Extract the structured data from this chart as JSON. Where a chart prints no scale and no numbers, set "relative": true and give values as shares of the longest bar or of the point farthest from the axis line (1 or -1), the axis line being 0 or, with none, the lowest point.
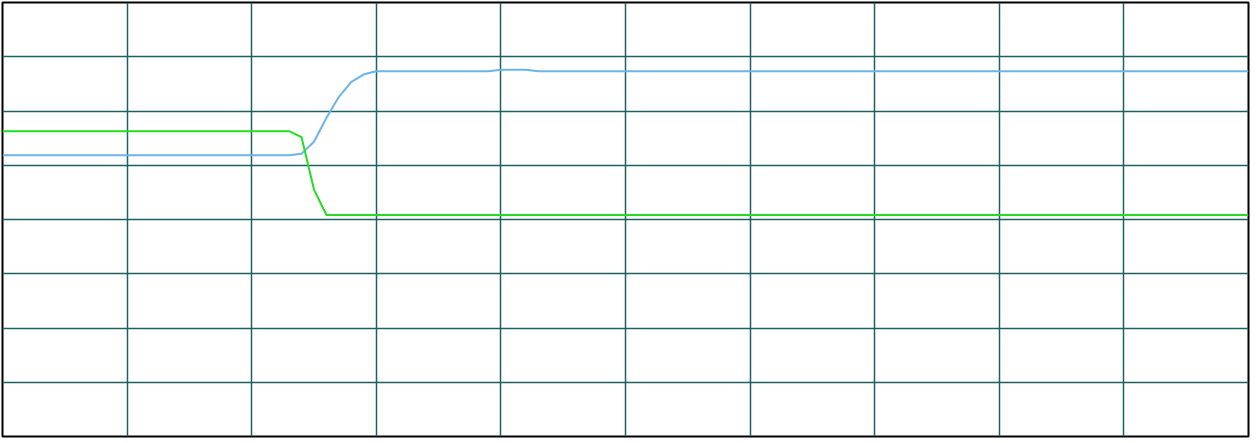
{
  "chart_data": {
    "type": "line",
    "relative": true,
    "grid": true,
    "marker": "none",
    "line_style": "solid",
    "categories": [
      null,
      null,
      null,
      null,
      null,
      null,
      null,
      null,
      null,
      null,
      null,
      null,
      null,
      null,
      null,
      null,
      null,
      null,
      null,
      null,
      null,
      null,
      null,
      null,
      null,
      null,
      null,
      null,
      null,
      null,
      null,
      null,
      null,
      null,
      null,
      null,
      null,
      null,
      null,
      null,
      null,
      null,
      null,
      null,
      null,
      null,
      null,
      null,
      null,
      null,
      null,
      null,
      null,
      null,
      null,
      null,
      null,
      null,
      null,
      null,
      null,
      null,
      null,
      null,
      null,
      null,
      null,
      null,
      null,
      null,
      null,
      null,
      null,
      null,
      null,
      null,
      null,
      null,
      null,
      null,
      null,
      null,
      null,
      null,
      null,
      null,
      null,
      null,
      null,
      null,
      null,
      null,
      null,
      null,
      null,
      null,
      null,
      null,
      null,
      null,
      null
    ],
    "series": [
      {
        "color": "#6ab4e8",
        "values": [
          0.43,
          0.43,
          0.43,
          0.43,
          0.43,
          0.43,
          0.43,
          0.43,
          0.43,
          0.43,
          0.43,
          0.43,
          0.43,
          0.43,
          0.43,
          0.43,
          0.43,
          0.43,
          0.43,
          0.43,
          0.43,
          0.43,
          0.43,
          0.43,
          0.44,
          0.52,
          0.68,
          0.82,
          0.92,
          0.97,
          0.99,
          0.99,
          0.99,
          0.99,
          0.99,
          0.99,
          0.99,
          0.99,
          0.99,
          0.99,
          1.0,
          1.0,
          1.0,
          0.99,
          0.99,
          0.99,
          0.99,
          0.99,
          0.99,
          0.99,
          0.99,
          0.99,
          0.99,
          0.99,
          0.99,
          0.99,
          0.99,
          0.99,
          0.99,
          0.99,
          0.99,
          0.99,
          0.99,
          0.99,
          0.99,
          0.99,
          0.99,
          0.99,
          0.99,
          0.99,
          0.99,
          0.99,
          0.99,
          0.99,
          0.99,
          0.99,
          0.99,
          0.99,
          0.99,
          0.99,
          0.99,
          0.99,
          0.99,
          0.99,
          0.99,
          0.99,
          0.99,
          0.99,
          0.99,
          0.99,
          0.99,
          0.99,
          0.99,
          0.99,
          0.99,
          0.99,
          0.99,
          0.99,
          0.99,
          0.99,
          0.99
        ]
      },
      {
        "color": "#22dd22",
        "values": [
          0.59,
          0.59,
          0.59,
          0.59,
          0.59,
          0.59,
          0.59,
          0.59,
          0.59,
          0.59,
          0.59,
          0.59,
          0.59,
          0.59,
          0.59,
          0.59,
          0.59,
          0.59,
          0.59,
          0.59,
          0.59,
          0.59,
          0.59,
          0.59,
          0.55,
          0.2,
          0.03,
          0.03,
          0.03,
          0.03,
          0.03,
          0.03,
          0.03,
          0.03,
          0.03,
          0.03,
          0.03,
          0.03,
          0.03,
          0.03,
          0.03,
          0.03,
          0.03,
          0.03,
          0.03,
          0.03,
          0.03,
          0.03,
          0.03,
          0.03,
          0.03,
          0.03,
          0.03,
          0.03,
          0.03,
          0.03,
          0.03,
          0.03,
          0.03,
          0.03,
          0.03,
          0.03,
          0.03,
          0.03,
          0.03,
          0.03,
          0.03,
          0.03,
          0.03,
          0.03,
          0.03,
          0.03,
          0.03,
          0.03,
          0.03,
          0.03,
          0.03,
          0.03,
          0.03,
          0.03,
          0.03,
          0.03,
          0.03,
          0.03,
          0.03,
          0.03,
          0.03,
          0.03,
          0.03,
          0.03,
          0.03,
          0.03,
          0.03,
          0.03,
          0.03,
          0.03,
          0.03,
          0.03,
          0.03,
          0.03,
          0.03
        ]
      }
    ]
  }
}
